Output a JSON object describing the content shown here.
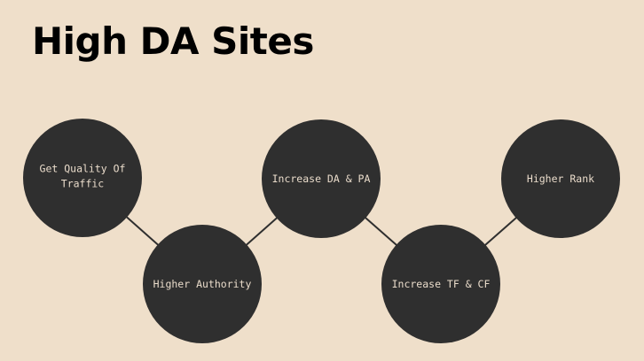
{
  "title": "High DA Sites",
  "colors": {
    "background": "#efdfca",
    "node": "#2f2f2f",
    "node_text": "#eadccb",
    "connector": "#2f2f2f"
  },
  "nodes": [
    {
      "lines": [
        "Get Quality Of",
        "Traffic"
      ]
    },
    {
      "lines": [
        "Higher Authority"
      ]
    },
    {
      "lines": [
        "Increase DA & PA"
      ]
    },
    {
      "lines": [
        "Increase TF & CF"
      ]
    },
    {
      "lines": [
        "Higher Rank"
      ]
    }
  ]
}
